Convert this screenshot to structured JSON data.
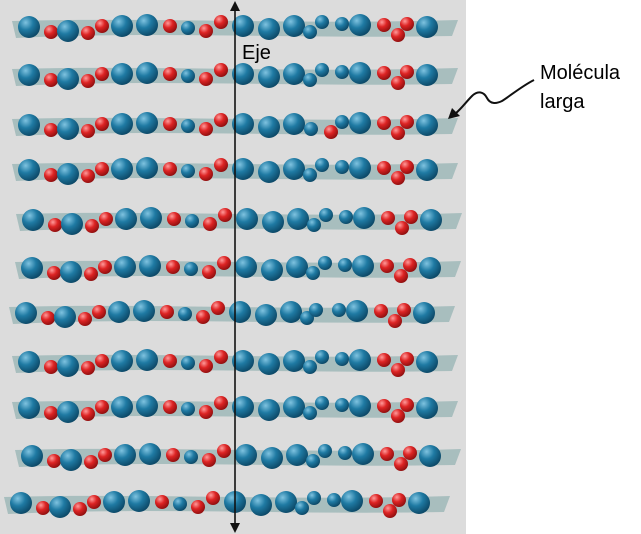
{
  "labels": {
    "axis": "Eje",
    "molecule_line1": "Molécula",
    "molecule_line2": "larga"
  },
  "colors": {
    "panel": "#dcdcdc",
    "band": "#9fb8b8",
    "blue_atom": "#1b6f96",
    "red_atom": "#d62222",
    "axis": "#111111"
  },
  "molecule_count": 11
}
